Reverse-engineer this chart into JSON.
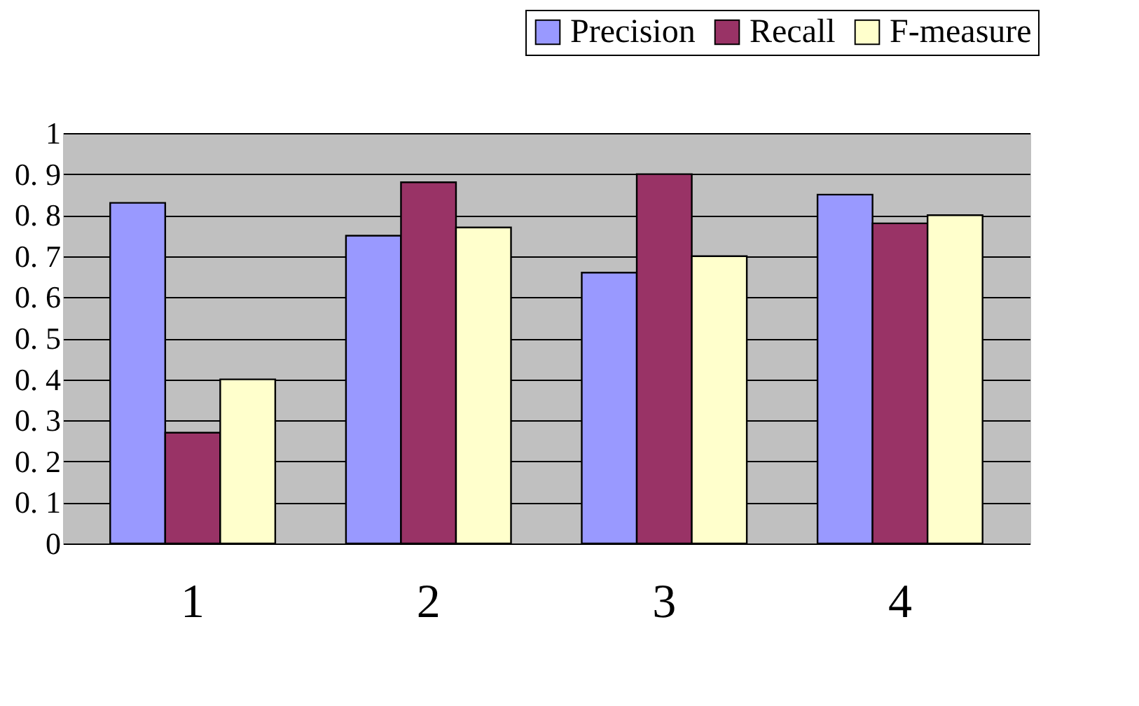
{
  "chart_data": {
    "type": "bar",
    "categories": [
      "1",
      "2",
      "3",
      "4"
    ],
    "series": [
      {
        "name": "Precision",
        "color": "#9999ff",
        "values": [
          0.83,
          0.75,
          0.66,
          0.85
        ]
      },
      {
        "name": "Recall",
        "color": "#993366",
        "values": [
          0.27,
          0.88,
          0.9,
          0.78
        ]
      },
      {
        "name": "F-measure",
        "color": "#ffffcc",
        "values": [
          0.4,
          0.77,
          0.7,
          0.8
        ]
      }
    ],
    "ylim": [
      0,
      1
    ],
    "yticks": [
      0,
      0.1,
      0.2,
      0.3,
      0.4,
      0.5,
      0.6,
      0.7,
      0.8,
      0.9,
      1
    ],
    "grid": "y",
    "legend": "top right"
  }
}
